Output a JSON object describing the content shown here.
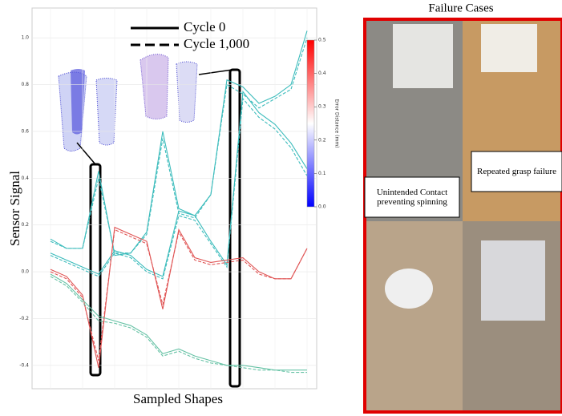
{
  "chart_data": {
    "type": "line",
    "ylabel": "Sensor Signal",
    "xlabel": "Sampled Shapes",
    "categories": [
      null,
      null,
      null,
      null,
      null,
      null,
      null,
      null,
      null,
      null,
      null,
      null,
      null,
      null,
      null,
      null,
      null
    ],
    "ylim": [
      -0.5,
      1.1
    ],
    "yticks": [
      {
        "value": -0.4,
        "label": "-0.4"
      },
      {
        "value": -0.2,
        "label": "-0.2"
      },
      {
        "value": 0,
        "label": "0.0"
      },
      0.2,
      0.4,
      0.6,
      0.8,
      {
        "value": 1,
        "label": "1.0"
      }
    ],
    "grid": true,
    "legend": [
      {
        "label": "Cycle 0",
        "dash": false
      },
      {
        "label": "Cycle 1,000",
        "dash": true
      }
    ],
    "series": [
      {
        "color": "#3cbcbc",
        "dash": false,
        "values": [
          0.14,
          0.1,
          0.1,
          0.43,
          0.07,
          0.08,
          0.17,
          0.6,
          0.27,
          0.24,
          0.33,
          0.82,
          0.79,
          0.72,
          0.75,
          0.8,
          1.03
        ]
      },
      {
        "color": "#3cbcbc",
        "dash": true,
        "values": [
          0.13,
          0.1,
          0.1,
          0.4,
          0.08,
          0.08,
          0.16,
          0.57,
          0.25,
          0.23,
          0.33,
          0.8,
          0.76,
          0.7,
          0.74,
          0.78,
          1.0
        ]
      },
      {
        "color": "#3cbcbc",
        "dash": false,
        "values": [
          0.08,
          0.05,
          0.02,
          -0.01,
          0.09,
          0.07,
          0.01,
          -0.02,
          0.26,
          0.24,
          0.13,
          0.03,
          0.77,
          0.68,
          0.63,
          0.55,
          0.44
        ]
      },
      {
        "color": "#3cbcbc",
        "dash": true,
        "values": [
          0.07,
          0.04,
          0.01,
          -0.02,
          0.08,
          0.06,
          0.0,
          -0.03,
          0.24,
          0.22,
          0.12,
          0.02,
          0.74,
          0.66,
          0.61,
          0.53,
          0.41
        ]
      },
      {
        "color": "#e05555",
        "dash": false,
        "values": [
          0.01,
          -0.02,
          -0.1,
          -0.41,
          0.19,
          0.16,
          0.13,
          -0.16,
          0.18,
          0.06,
          0.04,
          0.05,
          0.06,
          0.0,
          -0.03,
          -0.03,
          0.1
        ]
      },
      {
        "color": "#e05555",
        "dash": true,
        "values": [
          0.0,
          -0.03,
          -0.11,
          -0.38,
          0.18,
          0.15,
          0.12,
          -0.14,
          0.17,
          0.05,
          0.03,
          0.04,
          0.05,
          -0.01,
          -0.03,
          -0.03,
          0.1
        ]
      },
      {
        "color": "#66c2a5",
        "dash": false,
        "values": [
          -0.01,
          -0.05,
          -0.12,
          -0.19,
          -0.21,
          -0.23,
          -0.27,
          -0.35,
          -0.33,
          -0.36,
          -0.38,
          -0.4,
          -0.4,
          -0.41,
          -0.42,
          -0.42,
          -0.42
        ]
      },
      {
        "color": "#66c2a5",
        "dash": true,
        "values": [
          -0.02,
          -0.06,
          -0.13,
          -0.21,
          -0.22,
          -0.24,
          -0.28,
          -0.36,
          -0.34,
          -0.37,
          -0.39,
          -0.4,
          -0.41,
          -0.42,
          -0.42,
          -0.43,
          -0.43
        ]
      }
    ],
    "colorbar": {
      "label": "Error Distance (mm)",
      "lim": [
        0,
        0.5
      ],
      "colors": [
        "#0000ff",
        "#ffffff",
        "#ff0000"
      ],
      "ticks": [
        {
          "value": 0,
          "label": "0.0"
        },
        0.1,
        0.2,
        0.3,
        0.4,
        0.5
      ]
    }
  },
  "panel": {
    "title": "Failure Cases",
    "captions": [
      "Unintended Contact preventing spinning",
      "Repeated grasp failure"
    ]
  }
}
